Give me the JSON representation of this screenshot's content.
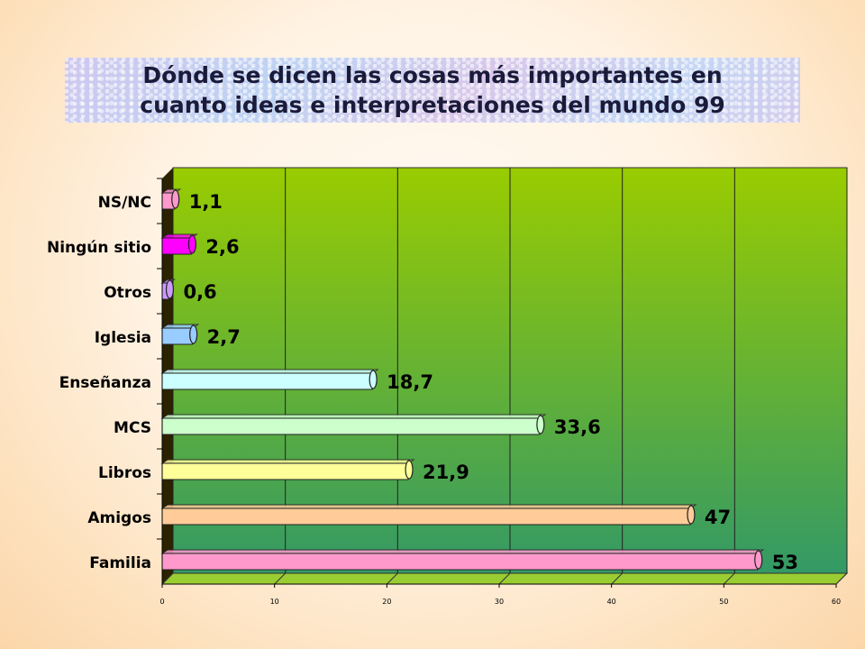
{
  "title": "Dónde se dicen las cosas más importantes en\ncuanto ideas e interpretaciones del mundo 99",
  "chart_data": {
    "type": "bar",
    "orientation": "horizontal",
    "three_d": true,
    "title": "Dónde se dicen las cosas más importantes en\ncuanto ideas e interpretaciones del mundo 99",
    "categories": [
      "NS/NC",
      "Ningún sitio",
      "Otros",
      "Iglesia",
      "Enseñanza",
      "MCS",
      "Libros",
      "Amigos",
      "Familia"
    ],
    "values": [
      1.1,
      2.6,
      0.6,
      2.7,
      18.7,
      33.6,
      21.9,
      47,
      53
    ],
    "data_labels": [
      "1,1",
      "2,6",
      "0,6",
      "2,7",
      "18,7",
      "33,6",
      "21,9",
      "47",
      "53"
    ],
    "bar_colors": [
      "#ff99cc",
      "#ff00ff",
      "#cc99ff",
      "#99ccff",
      "#ccffff",
      "#ccffcc",
      "#ffff99",
      "#ffcc99",
      "#ff99cc"
    ],
    "xlim": [
      0,
      60
    ],
    "xticks": [
      "0",
      "10",
      "20",
      "30",
      "40",
      "50",
      "60"
    ],
    "grid": true,
    "legend": "none",
    "background_gradient": [
      "#99cc00",
      "#339966"
    ]
  }
}
